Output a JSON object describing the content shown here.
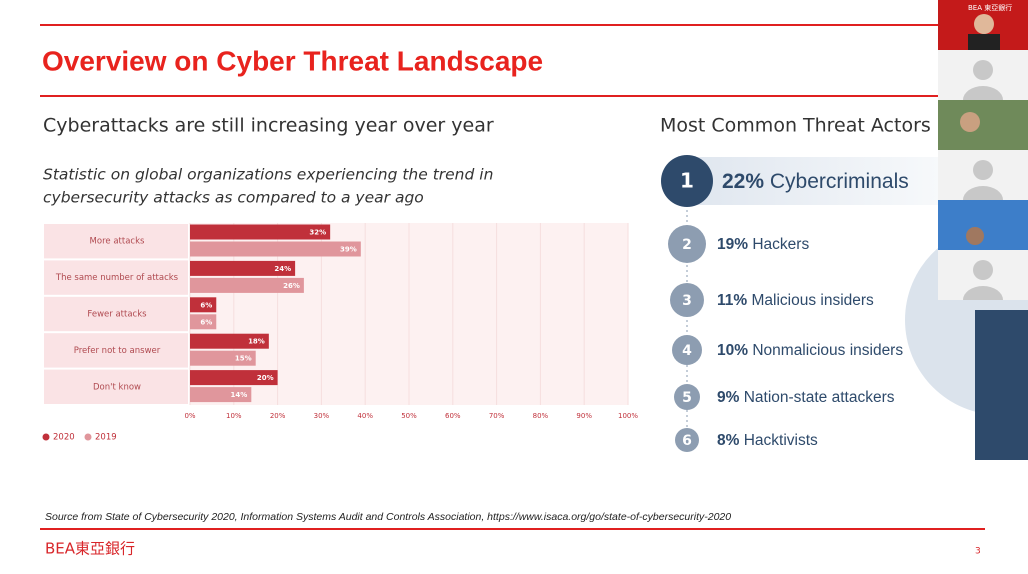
{
  "slide": {
    "title": "Overview on Cyber Threat Landscape",
    "page_number": "3",
    "logo": "BEA東亞銀行",
    "source": "Source from State of Cybersecurity 2020, Information Systems Audit and Controls Association, https://www.isaca.org/go/state-of-cybersecurity-2020"
  },
  "left_panel": {
    "heading": "Cyberattacks are still increasing year over year",
    "subtitle_lines": [
      "Statistic on global organizations experiencing the trend in",
      "cybersecurity attacks as compared to a year ago"
    ]
  },
  "chart_data": {
    "type": "hbar",
    "categories": [
      "More attacks",
      "The same number of attacks",
      "Fewer attacks",
      "Prefer not to answer",
      "Don't know"
    ],
    "series": [
      {
        "name": "2020",
        "color": "#c0303a",
        "values": [
          32,
          24,
          6,
          18,
          20
        ],
        "value_labels": [
          "32%",
          "24%",
          "6%",
          "18%",
          "20%"
        ]
      },
      {
        "name": "2019",
        "color": "#e0969c",
        "values": [
          39,
          26,
          6,
          15,
          14
        ],
        "value_labels": [
          "39%",
          "26%",
          "6%",
          "15%",
          "14%"
        ]
      }
    ],
    "xlim": [
      0,
      100
    ],
    "xticks": [
      {
        "value": 0,
        "label": "0%"
      },
      {
        "value": 10,
        "label": "10%"
      },
      {
        "value": 20,
        "label": "20%"
      },
      {
        "value": 30,
        "label": "30%"
      },
      {
        "value": 40,
        "label": "40%"
      },
      {
        "value": 50,
        "label": "50%"
      },
      {
        "value": 60,
        "label": "60%"
      },
      {
        "value": 70,
        "label": "70%"
      },
      {
        "value": 80,
        "label": "80%"
      },
      {
        "value": 90,
        "label": "90%"
      },
      {
        "value": 100,
        "label": "100%"
      }
    ],
    "grid": true,
    "legend": "bottom-left"
  },
  "threat_actors": {
    "title": "Most Common Threat Actors",
    "items": [
      {
        "rank": 1,
        "percent": "22%",
        "label": "Cybercriminals"
      },
      {
        "rank": 2,
        "percent": "19%",
        "label": "Hackers"
      },
      {
        "rank": 3,
        "percent": "11%",
        "label": "Malicious insiders"
      },
      {
        "rank": 4,
        "percent": "10%",
        "label": "Nonmalicious insiders"
      },
      {
        "rank": 5,
        "percent": "9%",
        "label": "Nation-state attackers"
      },
      {
        "rank": 6,
        "percent": "8%",
        "label": "Hacktivists"
      }
    ]
  },
  "participants": {
    "banner": "BEA 東亞銀行"
  }
}
